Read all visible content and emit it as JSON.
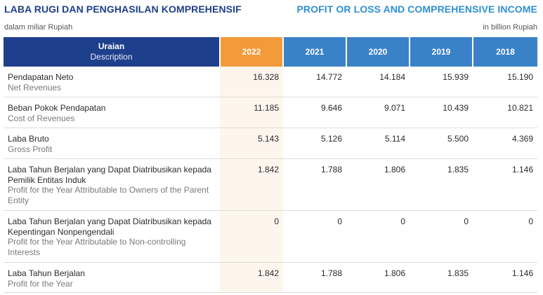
{
  "header": {
    "title_id": "LABA RUGI DAN PENGHASILAN KOMPREHENSIF",
    "title_en": "PROFIT OR LOSS AND COMPREHENSIVE INCOME",
    "unit_id": "dalam miliar Rupiah",
    "unit_en": "in billion Rupiah"
  },
  "table": {
    "columns": {
      "desc_id": "Uraian",
      "desc_en": "Description",
      "years": [
        "2022",
        "2021",
        "2020",
        "2019",
        "2018"
      ]
    },
    "rows": [
      {
        "label_id": "Pendapatan Neto",
        "label_en": "Net Revenues",
        "values": [
          "16.328",
          "14.772",
          "14.184",
          "15.939",
          "15.190"
        ]
      },
      {
        "label_id": "Beban Pokok Pendapatan",
        "label_en": "Cost of Revenues",
        "values": [
          "11.185",
          "9.646",
          "9.071",
          "10.439",
          "10.821"
        ]
      },
      {
        "label_id": "Laba Bruto",
        "label_en": "Gross Profit",
        "values": [
          "5.143",
          "5.126",
          "5.114",
          "5.500",
          "4.369"
        ]
      },
      {
        "label_id": "Laba Tahun Berjalan yang Dapat Diatribusikan kepada Pemilik Entitas Induk",
        "label_en": "Profit for the Year Attributable to Owners of the Parent Entity",
        "values": [
          "1.842",
          "1.788",
          "1.806",
          "1.835",
          "1.146"
        ]
      },
      {
        "label_id": "Laba Tahun Berjalan yang Dapat Diatribusikan kepada Kepentingan Nonpengendali",
        "label_en": "Profit for the Year Attributable to Non-controlling Interests",
        "values": [
          "0",
          "0",
          "0",
          "0",
          "0"
        ]
      },
      {
        "label_id": "Laba Tahun Berjalan",
        "label_en": "Profit for the Year",
        "values": [
          "1.842",
          "1.788",
          "1.806",
          "1.835",
          "1.146"
        ]
      }
    ]
  },
  "colors": {
    "title_id": "#1e3f8c",
    "title_en": "#2e8fd6",
    "header_desc_bg": "#1e3f8c",
    "header_highlight_bg": "#f39a3a",
    "header_year_bg": "#3a82c8",
    "highlight_column_bg": "#fdf6ec"
  }
}
